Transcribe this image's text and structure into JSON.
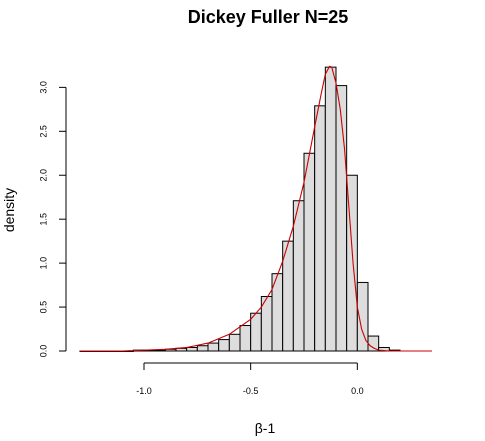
{
  "chart_data": {
    "type": "histogram",
    "title": "Dickey Fuller N=25",
    "xlabel": "β-1",
    "ylabel": "density",
    "xlim": [
      -1.3,
      0.35
    ],
    "ylim": [
      0,
      3.3
    ],
    "x_ticks": [
      {
        "value": -1.0,
        "label": "-1.0"
      },
      {
        "value": -0.5,
        "label": "-0.5"
      },
      {
        "value": 0.0,
        "label": "0.0"
      }
    ],
    "y_ticks": [
      {
        "value": 0.0,
        "label": "0.0"
      },
      {
        "value": 0.5,
        "label": "0.5"
      },
      {
        "value": 1.0,
        "label": "1.0"
      },
      {
        "value": 1.5,
        "label": "1.5"
      },
      {
        "value": 2.0,
        "label": "2.0"
      },
      {
        "value": 2.5,
        "label": "2.5"
      },
      {
        "value": 3.0,
        "label": "3.0"
      }
    ],
    "bins": [
      {
        "x0": -1.3,
        "x1": -1.25,
        "density": 0.0
      },
      {
        "x0": -1.25,
        "x1": -1.2,
        "density": 0.0
      },
      {
        "x0": -1.2,
        "x1": -1.15,
        "density": 0.0
      },
      {
        "x0": -1.15,
        "x1": -1.1,
        "density": 0.0
      },
      {
        "x0": -1.1,
        "x1": -1.05,
        "density": 0.0
      },
      {
        "x0": -1.05,
        "x1": -1.0,
        "density": 0.01
      },
      {
        "x0": -1.0,
        "x1": -0.95,
        "density": 0.01
      },
      {
        "x0": -0.95,
        "x1": -0.9,
        "density": 0.01
      },
      {
        "x0": -0.9,
        "x1": -0.85,
        "density": 0.02
      },
      {
        "x0": -0.85,
        "x1": -0.8,
        "density": 0.03
      },
      {
        "x0": -0.8,
        "x1": -0.75,
        "density": 0.04
      },
      {
        "x0": -0.75,
        "x1": -0.7,
        "density": 0.06
      },
      {
        "x0": -0.7,
        "x1": -0.65,
        "density": 0.09
      },
      {
        "x0": -0.65,
        "x1": -0.6,
        "density": 0.13
      },
      {
        "x0": -0.6,
        "x1": -0.55,
        "density": 0.19
      },
      {
        "x0": -0.55,
        "x1": -0.5,
        "density": 0.29
      },
      {
        "x0": -0.5,
        "x1": -0.45,
        "density": 0.43
      },
      {
        "x0": -0.45,
        "x1": -0.4,
        "density": 0.62
      },
      {
        "x0": -0.4,
        "x1": -0.35,
        "density": 0.88
      },
      {
        "x0": -0.35,
        "x1": -0.3,
        "density": 1.25
      },
      {
        "x0": -0.3,
        "x1": -0.25,
        "density": 1.71
      },
      {
        "x0": -0.25,
        "x1": -0.2,
        "density": 2.25
      },
      {
        "x0": -0.2,
        "x1": -0.15,
        "density": 2.79
      },
      {
        "x0": -0.15,
        "x1": -0.1,
        "density": 3.23
      },
      {
        "x0": -0.1,
        "x1": -0.05,
        "density": 3.02
      },
      {
        "x0": -0.05,
        "x1": 0.0,
        "density": 2.0
      },
      {
        "x0": 0.0,
        "x1": 0.05,
        "density": 0.78
      },
      {
        "x0": 0.05,
        "x1": 0.1,
        "density": 0.17
      },
      {
        "x0": 0.1,
        "x1": 0.15,
        "density": 0.04
      },
      {
        "x0": 0.15,
        "x1": 0.2,
        "density": 0.01
      }
    ],
    "bar_fill": "#dddddd",
    "bar_stroke": "#000000",
    "density_curve_color": "#cc0000",
    "density_curve": {
      "x": [
        -1.3,
        -1.2,
        -1.1,
        -1.0,
        -0.9,
        -0.8,
        -0.7,
        -0.6,
        -0.5,
        -0.45,
        -0.4,
        -0.35,
        -0.3,
        -0.25,
        -0.2,
        -0.17,
        -0.15,
        -0.13,
        -0.12,
        -0.1,
        -0.08,
        -0.06,
        -0.04,
        -0.02,
        0.0,
        0.02,
        0.04,
        0.06,
        0.08,
        0.1,
        0.15,
        0.2,
        0.25,
        0.35
      ],
      "y": [
        0.0,
        0.0,
        0.0,
        0.01,
        0.02,
        0.04,
        0.09,
        0.19,
        0.36,
        0.5,
        0.7,
        1.02,
        1.42,
        1.92,
        2.55,
        2.92,
        3.15,
        3.24,
        3.23,
        3.05,
        2.75,
        2.3,
        1.65,
        1.0,
        0.5,
        0.25,
        0.12,
        0.06,
        0.03,
        0.01,
        0.0,
        0.0,
        0.0,
        0.0
      ]
    }
  }
}
